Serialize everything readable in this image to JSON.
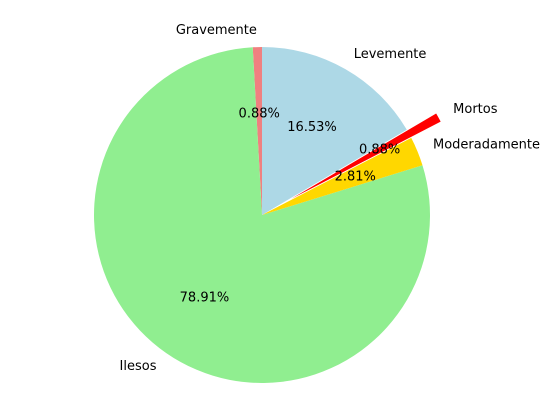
{
  "chart_data": {
    "type": "pie",
    "title": "",
    "start_angle_deg": 90,
    "direction": "counterclockwise",
    "slices": [
      {
        "label": "Gravemente",
        "value": 0.88,
        "pct_label": "0.88%",
        "color": "#f08080",
        "explode": false
      },
      {
        "label": "Ilesos",
        "value": 78.91,
        "pct_label": "78.91%",
        "color": "#90ee90",
        "explode": false
      },
      {
        "label": "Moderadamente",
        "value": 2.81,
        "pct_label": "2.81%",
        "color": "#ffd700",
        "explode": false
      },
      {
        "label": "Mortos",
        "value": 0.88,
        "pct_label": "0.88%",
        "color": "#ff0000",
        "explode": true
      },
      {
        "label": "Levemente",
        "value": 16.53,
        "pct_label": "16.53%",
        "color": "#add8e6",
        "explode": false
      }
    ]
  }
}
